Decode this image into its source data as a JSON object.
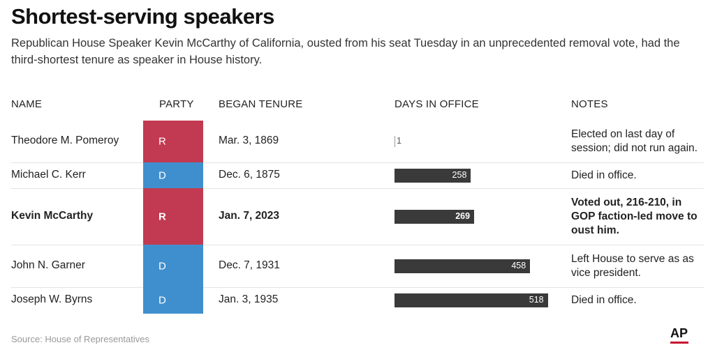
{
  "title": "Shortest-serving speakers",
  "subtitle": "Republican House Speaker Kevin McCarthy of California, ousted from his seat Tuesday in an unprecedented removal vote, had the third-shortest tenure as speaker in House history.",
  "headers": {
    "name": "NAME",
    "party": "PARTY",
    "began": "BEGAN TENURE",
    "days": "DAYS IN OFFICE",
    "notes": "NOTES"
  },
  "colors": {
    "R": "#c23a51",
    "D": "#3f8fce",
    "bar": "#3a3a3a"
  },
  "rows": [
    {
      "name": "Theodore M. Pomeroy",
      "party": "R",
      "began": "Mar. 3, 1869",
      "days": 1,
      "days_label": "1",
      "notes": "Elected on last day of session; did not run again.",
      "highlight": false
    },
    {
      "name": "Michael C. Kerr",
      "party": "D",
      "began": "Dec. 6, 1875",
      "days": 258,
      "days_label": "258",
      "notes": "Died in office.",
      "highlight": false
    },
    {
      "name": "Kevin McCarthy",
      "party": "R",
      "began": "Jan. 7, 2023",
      "days": 269,
      "days_label": "269",
      "notes": "Voted out, 216-210, in GOP faction-led move to oust him.",
      "highlight": true
    },
    {
      "name": "John N. Garner",
      "party": "D",
      "began": "Dec. 7, 1931",
      "days": 458,
      "days_label": "458",
      "notes": "Left House to serve as as vice president.",
      "highlight": false
    },
    {
      "name": "Joseph W. Byrns",
      "party": "D",
      "began": "Jan. 3, 1935",
      "days": 518,
      "days_label": "518",
      "notes": "Died in office.",
      "highlight": false
    }
  ],
  "chart_data": {
    "type": "bar",
    "categories": [
      "Theodore M. Pomeroy",
      "Michael C. Kerr",
      "Kevin McCarthy",
      "John N. Garner",
      "Joseph W. Byrns"
    ],
    "values": [
      1,
      258,
      269,
      458,
      518
    ],
    "title": "Shortest-serving speakers",
    "xlabel": "DAYS IN OFFICE",
    "ylabel": "",
    "orientation": "horizontal",
    "grid": false
  },
  "source": "Source: House of Representatives",
  "logo": "AP"
}
